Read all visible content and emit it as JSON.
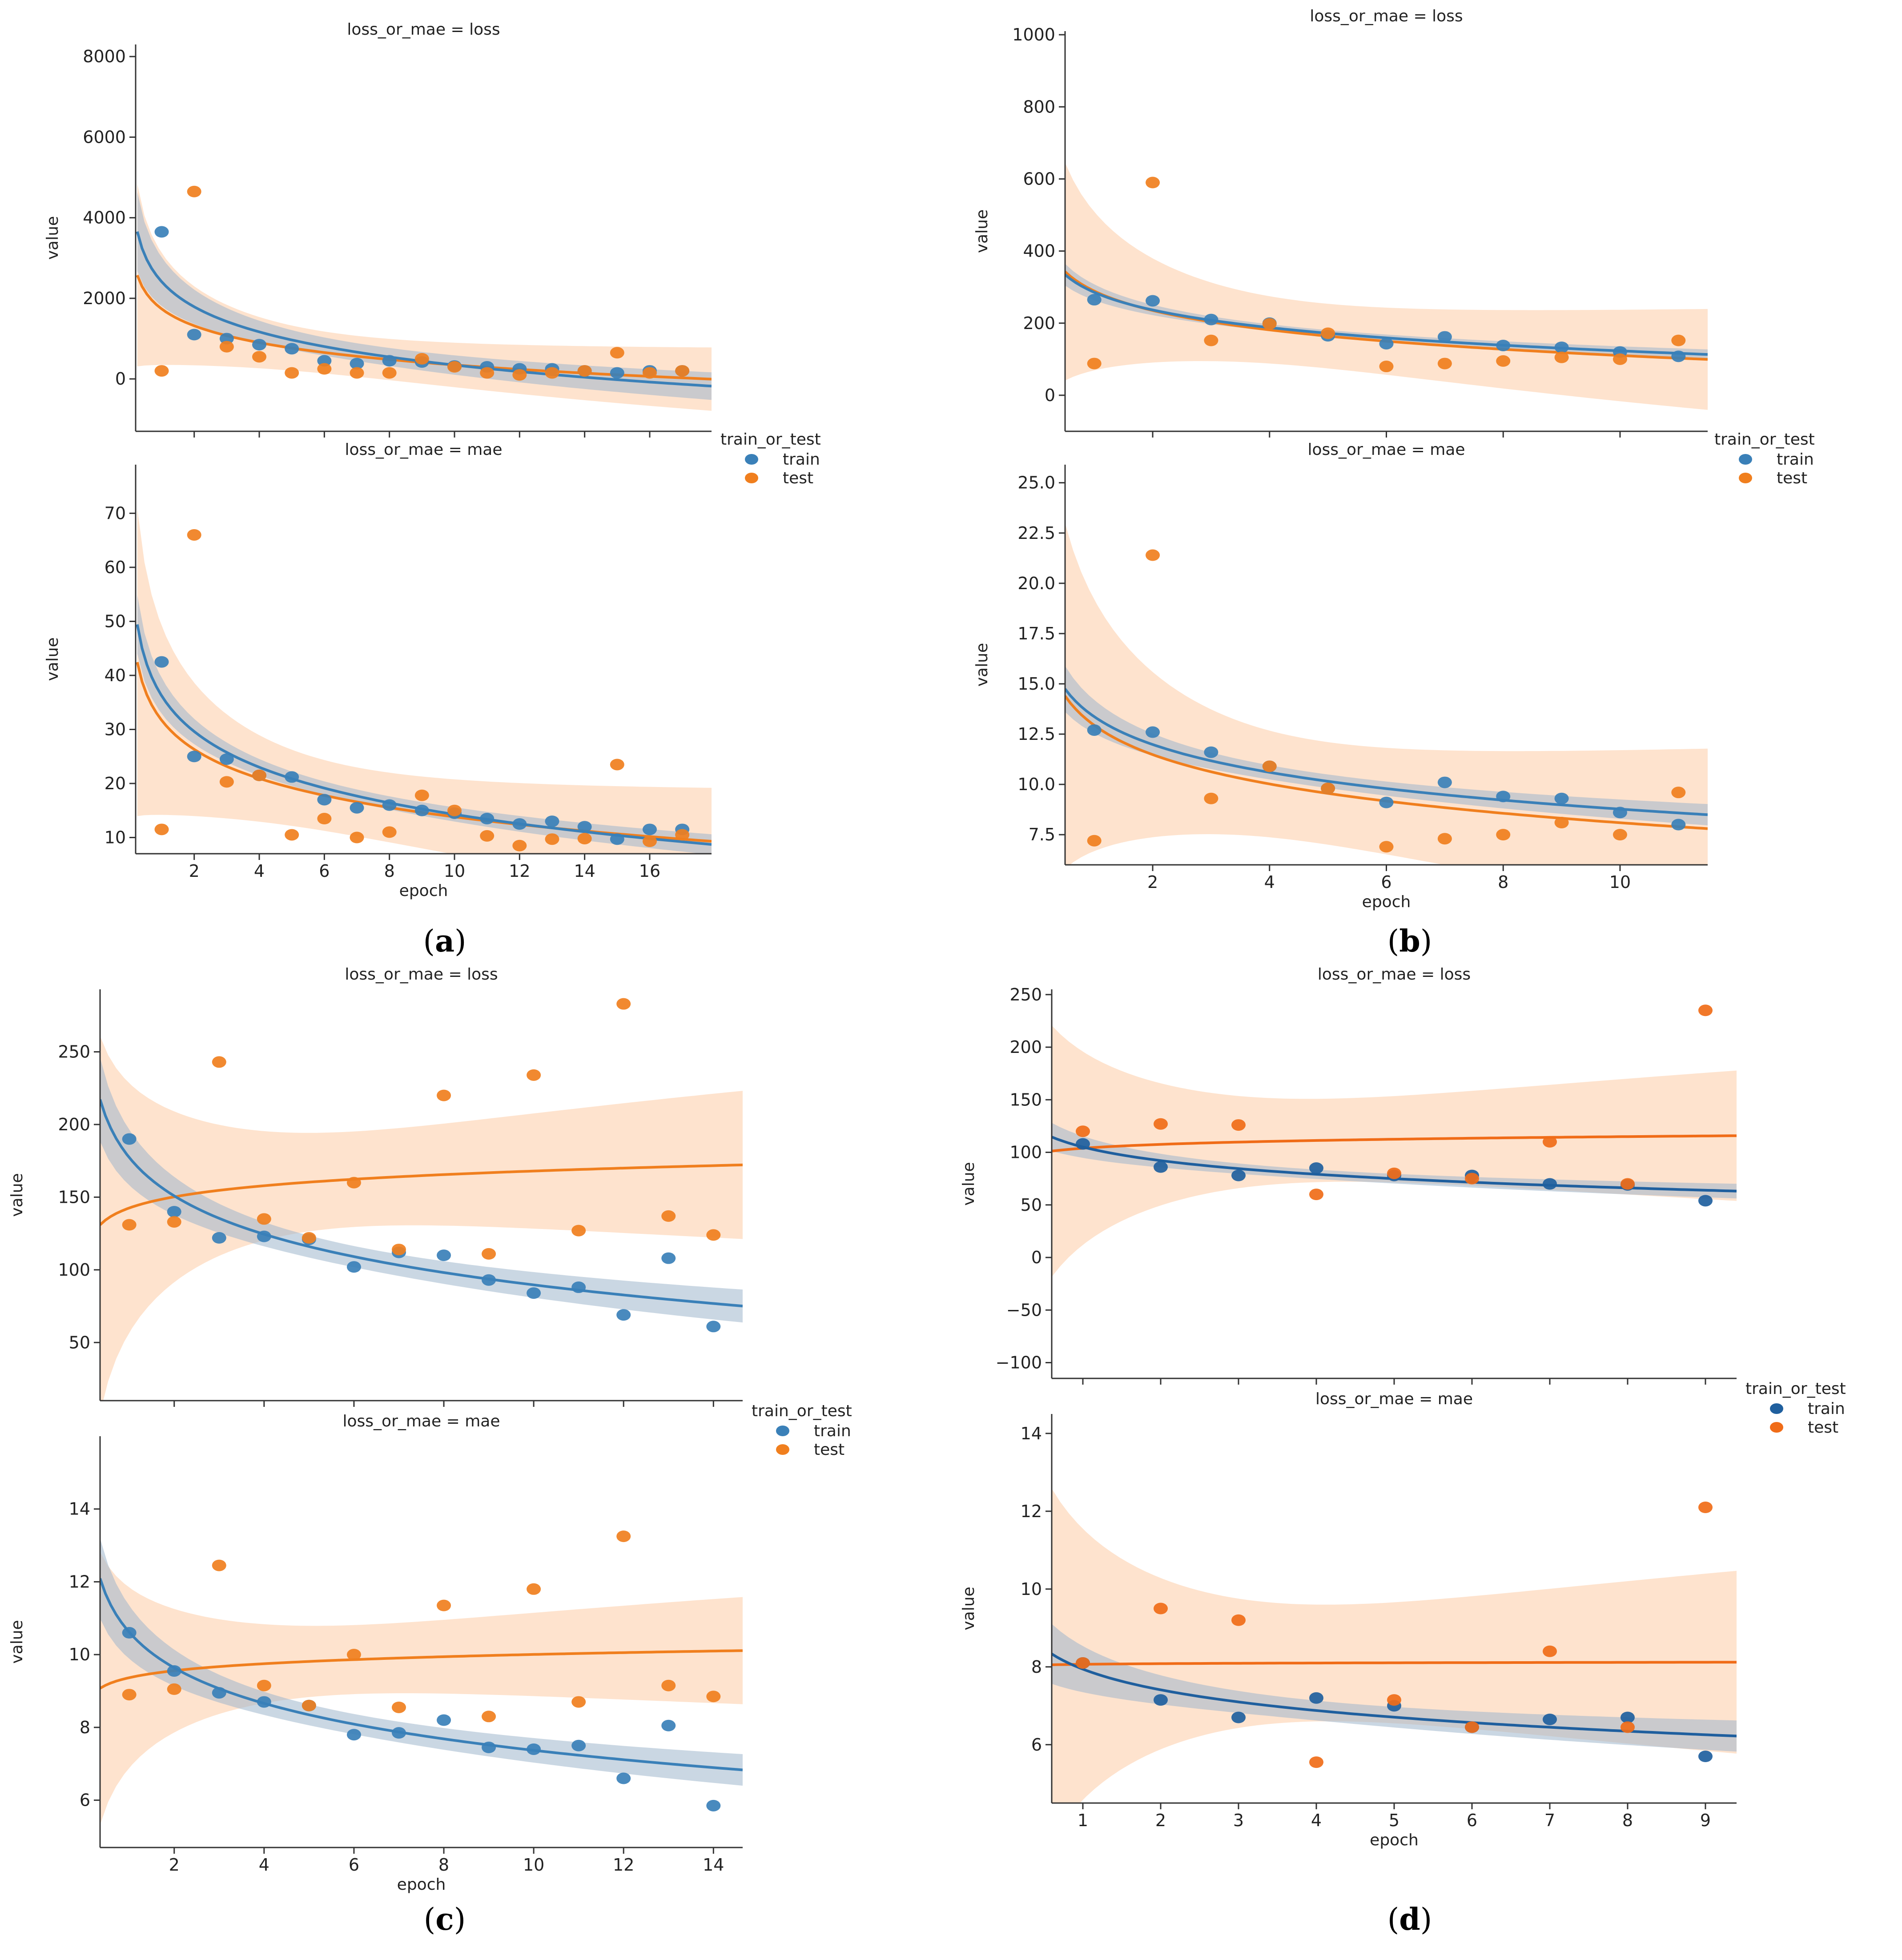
{
  "colors": {
    "train_a": "#3a80b8",
    "test_a": "#f07f1e",
    "train_d": "#1f5f9e",
    "test_d": "#f06c18",
    "band_test": "#fdd9bd",
    "band_train": "#9fb7cc"
  },
  "chart_data": [
    {
      "id": "a",
      "caption": "(a)",
      "caption_letter": "a",
      "type": "scatter",
      "xlabel": "epoch",
      "ylabel": "value",
      "legend": {
        "title": "train_or_test",
        "entries": [
          "train",
          "test"
        ]
      },
      "panels": [
        {
          "title": "loss_or_mae = loss",
          "xlim": [
            0.2,
            17.9
          ],
          "ylim": [
            -1300,
            8300
          ],
          "yticks": [
            0,
            2000,
            4000,
            6000,
            8000
          ],
          "xticks": [
            2,
            4,
            6,
            8,
            10,
            12,
            14,
            16
          ],
          "show_xticklabels": false,
          "series": [
            {
              "name": "train",
              "x": [
                1,
                2,
                3,
                4,
                5,
                6,
                7,
                8,
                9,
                10,
                11,
                12,
                13,
                14,
                15,
                16,
                17
              ],
              "y": [
                3650,
                1100,
                1000,
                850,
                750,
                450,
                380,
                450,
                420,
                320,
                300,
                250,
                250,
                200,
                150,
                200,
                200
              ]
            },
            {
              "name": "test",
              "x": [
                1,
                2,
                3,
                4,
                5,
                6,
                7,
                8,
                9,
                10,
                11,
                12,
                13,
                14,
                15,
                16,
                17
              ],
              "y": [
                200,
                4650,
                800,
                550,
                150,
                250,
                150,
                150,
                500,
                300,
                150,
                100,
                150,
                200,
                650,
                150,
                200
              ]
            }
          ]
        },
        {
          "title": "loss_or_mae = mae",
          "xlim": [
            0.2,
            17.9
          ],
          "ylim": [
            7,
            79
          ],
          "yticks": [
            10,
            20,
            30,
            40,
            50,
            60,
            70
          ],
          "xticks": [
            2,
            4,
            6,
            8,
            10,
            12,
            14,
            16
          ],
          "show_xticklabels": true,
          "series": [
            {
              "name": "train",
              "x": [
                1,
                2,
                3,
                4,
                5,
                6,
                7,
                8,
                9,
                10,
                11,
                12,
                13,
                14,
                15,
                16,
                17
              ],
              "y": [
                42.5,
                25,
                24.5,
                21.5,
                21.2,
                17,
                15.5,
                16,
                15,
                14.5,
                13.5,
                12.5,
                13,
                12,
                9.7,
                11.5,
                11.5
              ]
            },
            {
              "name": "test",
              "x": [
                1,
                2,
                3,
                4,
                5,
                6,
                7,
                8,
                9,
                10,
                11,
                12,
                13,
                14,
                15,
                16,
                17
              ],
              "y": [
                11.5,
                66,
                20.3,
                21.5,
                10.5,
                13.5,
                10,
                11,
                17.8,
                15,
                10.3,
                8.5,
                9.7,
                9.8,
                23.5,
                9.3,
                10.5
              ]
            }
          ]
        }
      ]
    },
    {
      "id": "b",
      "caption": "(b)",
      "caption_letter": "b",
      "type": "scatter",
      "xlabel": "epoch",
      "ylabel": "value",
      "legend": {
        "title": "train_or_test",
        "entries": [
          "train",
          "test"
        ]
      },
      "panels": [
        {
          "title": "loss_or_mae = loss",
          "xlim": [
            0.5,
            11.5
          ],
          "ylim": [
            -100,
            1010
          ],
          "yticks": [
            0,
            200,
            400,
            600,
            800,
            1000
          ],
          "xticks": [
            2,
            4,
            6,
            8,
            10
          ],
          "show_xticklabels": false,
          "series": [
            {
              "name": "train",
              "x": [
                1,
                2,
                3,
                4,
                5,
                6,
                7,
                8,
                9,
                10,
                11
              ],
              "y": [
                265,
                262,
                210,
                200,
                165,
                143,
                162,
                138,
                133,
                120,
                108
              ]
            },
            {
              "name": "test",
              "x": [
                1,
                2,
                3,
                4,
                5,
                6,
                7,
                8,
                9,
                10,
                11
              ],
              "y": [
                88,
                590,
                152,
                198,
                172,
                80,
                88,
                95,
                105,
                100,
                152
              ]
            }
          ]
        },
        {
          "title": "loss_or_mae = mae",
          "xlim": [
            0.5,
            11.5
          ],
          "ylim": [
            6.0,
            25.9
          ],
          "yticks": [
            7.5,
            10.0,
            12.5,
            15.0,
            17.5,
            20.0,
            22.5,
            25.0
          ],
          "yticklabels": [
            "7.5",
            "10.0",
            "12.5",
            "15.0",
            "17.5",
            "20.0",
            "22.5",
            "25.0"
          ],
          "xticks": [
            2,
            4,
            6,
            8,
            10
          ],
          "show_xticklabels": true,
          "series": [
            {
              "name": "train",
              "x": [
                1,
                2,
                3,
                4,
                5,
                6,
                7,
                8,
                9,
                10,
                11
              ],
              "y": [
                12.7,
                12.6,
                11.6,
                10.9,
                9.8,
                9.1,
                10.1,
                9.4,
                9.3,
                8.6,
                8.0
              ]
            },
            {
              "name": "test",
              "x": [
                1,
                2,
                3,
                4,
                5,
                6,
                7,
                8,
                9,
                10,
                11
              ],
              "y": [
                7.2,
                21.4,
                9.3,
                10.9,
                9.8,
                6.9,
                7.3,
                7.5,
                8.1,
                7.5,
                9.6
              ]
            }
          ]
        }
      ]
    },
    {
      "id": "c",
      "caption": "(c)",
      "caption_letter": "c",
      "type": "scatter",
      "xlabel": "epoch",
      "ylabel": "value",
      "legend": {
        "title": "train_or_test",
        "entries": [
          "train",
          "test"
        ]
      },
      "panels": [
        {
          "title": "loss_or_mae = loss",
          "xlim": [
            0.35,
            14.65
          ],
          "ylim": [
            10,
            293
          ],
          "yticks": [
            50,
            100,
            150,
            200,
            250
          ],
          "xticks": [
            2,
            4,
            6,
            8,
            10,
            12,
            14
          ],
          "show_xticklabels": false,
          "series": [
            {
              "name": "train",
              "x": [
                1,
                2,
                3,
                4,
                5,
                6,
                7,
                8,
                9,
                10,
                11,
                12,
                13,
                14
              ],
              "y": [
                190,
                140,
                122,
                123,
                121,
                102,
                112,
                110,
                93,
                84,
                88,
                69,
                108,
                61
              ]
            },
            {
              "name": "test",
              "x": [
                1,
                2,
                3,
                4,
                5,
                6,
                7,
                8,
                9,
                10,
                11,
                12,
                13,
                14
              ],
              "y": [
                131,
                133,
                243,
                135,
                122,
                160,
                114,
                220,
                111,
                234,
                127,
                283,
                137,
                124
              ]
            }
          ]
        },
        {
          "title": "loss_or_mae = mae",
          "xlim": [
            0.35,
            14.65
          ],
          "ylim": [
            4.7,
            16.0
          ],
          "yticks": [
            6,
            8,
            10,
            12,
            14
          ],
          "xticks": [
            2,
            4,
            6,
            8,
            10,
            12,
            14
          ],
          "show_xticklabels": true,
          "series": [
            {
              "name": "train",
              "x": [
                1,
                2,
                3,
                4,
                5,
                6,
                7,
                8,
                9,
                10,
                11,
                12,
                13,
                14
              ],
              "y": [
                10.6,
                9.55,
                8.95,
                8.7,
                8.6,
                7.8,
                7.85,
                8.2,
                7.45,
                7.4,
                7.5,
                6.6,
                8.05,
                5.85
              ]
            },
            {
              "name": "test",
              "x": [
                1,
                2,
                3,
                4,
                5,
                6,
                7,
                8,
                9,
                10,
                11,
                12,
                13,
                14
              ],
              "y": [
                8.9,
                9.05,
                12.45,
                9.15,
                8.6,
                10.0,
                8.55,
                11.35,
                8.3,
                11.8,
                8.7,
                13.25,
                9.15,
                8.85
              ]
            }
          ]
        }
      ]
    },
    {
      "id": "d",
      "caption": "(d)",
      "caption_letter": "d",
      "type": "scatter",
      "xlabel": "epoch",
      "ylabel": "value",
      "legend": {
        "title": "train_or_test",
        "entries": [
          "train",
          "test"
        ]
      },
      "panels": [
        {
          "title": "loss_or_mae = loss",
          "xlim": [
            0.6,
            9.4
          ],
          "ylim": [
            -115,
            255
          ],
          "yticks": [
            -100,
            -50,
            0,
            50,
            100,
            150,
            200,
            250
          ],
          "yticklabels": [
            "−100",
            "−50",
            "0",
            "50",
            "100",
            "150",
            "200",
            "250"
          ],
          "xticks": [
            1,
            2,
            3,
            4,
            5,
            6,
            7,
            8,
            9
          ],
          "show_xticklabels": false,
          "series": [
            {
              "name": "train",
              "x": [
                1,
                2,
                3,
                4,
                5,
                6,
                7,
                8,
                9
              ],
              "y": [
                108,
                86,
                78,
                85,
                78,
                78,
                70,
                69,
                54
              ]
            },
            {
              "name": "test",
              "x": [
                1,
                2,
                3,
                4,
                5,
                6,
                7,
                8,
                9
              ],
              "y": [
                120,
                127,
                126,
                60,
                80,
                75,
                110,
                70,
                235
              ]
            }
          ]
        },
        {
          "title": "loss_or_mae = mae",
          "xlim": [
            0.6,
            9.4
          ],
          "ylim": [
            4.5,
            14.5
          ],
          "yticks": [
            6,
            8,
            10,
            12,
            14
          ],
          "xticks": [
            1,
            2,
            3,
            4,
            5,
            6,
            7,
            8,
            9
          ],
          "show_xticklabels": true,
          "series": [
            {
              "name": "train",
              "x": [
                1,
                2,
                3,
                4,
                5,
                6,
                7,
                8,
                9
              ],
              "y": [
                8.1,
                7.15,
                6.7,
                7.2,
                7.0,
                6.45,
                6.65,
                6.7,
                5.7
              ]
            },
            {
              "name": "test",
              "x": [
                1,
                2,
                3,
                4,
                5,
                6,
                7,
                8,
                9
              ],
              "y": [
                8.1,
                9.5,
                9.2,
                5.55,
                7.15,
                6.45,
                8.4,
                6.45,
                12.1
              ]
            }
          ]
        }
      ]
    }
  ]
}
